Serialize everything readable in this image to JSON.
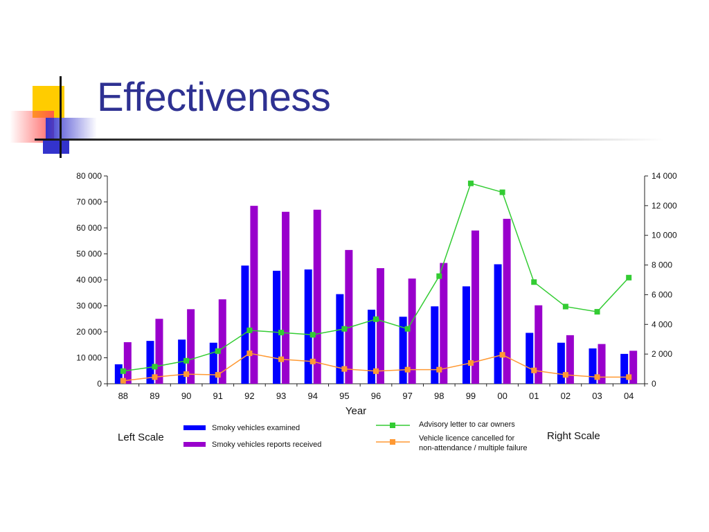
{
  "slide": {
    "title": "Effectiveness"
  },
  "colors": {
    "title": "#2e3192",
    "bar_examined": "#0000ff",
    "bar_reports": "#9900cc",
    "line_advisory": "#33cc33",
    "line_cancelled": "#ff9933",
    "deco_yellow": "#ffcc00",
    "deco_red": "#ff3333",
    "deco_blue": "#3333cc"
  },
  "chart_data": {
    "type": "bar",
    "x": [
      "88",
      "89",
      "90",
      "91",
      "92",
      "93",
      "94",
      "95",
      "96",
      "97",
      "98",
      "99",
      "00",
      "01",
      "02",
      "03",
      "04"
    ],
    "xlabel": "Year",
    "left_axis": {
      "ylim": [
        0,
        80000
      ],
      "ticks": [
        0,
        10000,
        20000,
        30000,
        40000,
        50000,
        60000,
        70000,
        80000
      ],
      "tick_labels": [
        "0",
        "10 000",
        "20 000",
        "30 000",
        "40 000",
        "50 000",
        "60 000",
        "70 000",
        "80 000"
      ],
      "scale_label": "Left Scale"
    },
    "right_axis": {
      "ylim": [
        0,
        14000
      ],
      "ticks": [
        0,
        2000,
        4000,
        6000,
        8000,
        10000,
        12000,
        14000
      ],
      "tick_labels": [
        "0",
        "2 000",
        "4 000",
        "6 000",
        "8 000",
        "10 000",
        "12 000",
        "14 000"
      ],
      "scale_label": "Right Scale"
    },
    "bar_series": [
      {
        "name": "Smoky vehicles examined",
        "color": "#0000ff",
        "values": [
          7500,
          16500,
          17000,
          15800,
          45500,
          43500,
          44000,
          34500,
          28500,
          25800,
          29800,
          37500,
          46000,
          19600,
          15800,
          13600,
          11500
        ]
      },
      {
        "name": "Smoky vehicles reports received",
        "color": "#9900cc",
        "values": [
          16000,
          25000,
          28700,
          32500,
          68500,
          66200,
          67000,
          51500,
          44500,
          40500,
          46500,
          59000,
          63500,
          30200,
          18700,
          15300,
          12700
        ]
      }
    ],
    "line_series": [
      {
        "name": "Advisory letter to car owners",
        "color": "#33cc33",
        "axis": "right",
        "values": [
          850,
          1150,
          1550,
          2200,
          3600,
          3450,
          3300,
          3700,
          4350,
          3700,
          7250,
          13500,
          12900,
          6850,
          5200,
          4850,
          7150
        ]
      },
      {
        "name": "Vehicle licence cancelled for",
        "name_line2": "non-attendance / multiple failure",
        "color": "#ff9933",
        "axis": "right",
        "values": [
          200,
          450,
          650,
          600,
          2050,
          1650,
          1500,
          1000,
          850,
          950,
          950,
          1400,
          1950,
          900,
          600,
          450,
          450
        ]
      }
    ],
    "grid": false
  }
}
